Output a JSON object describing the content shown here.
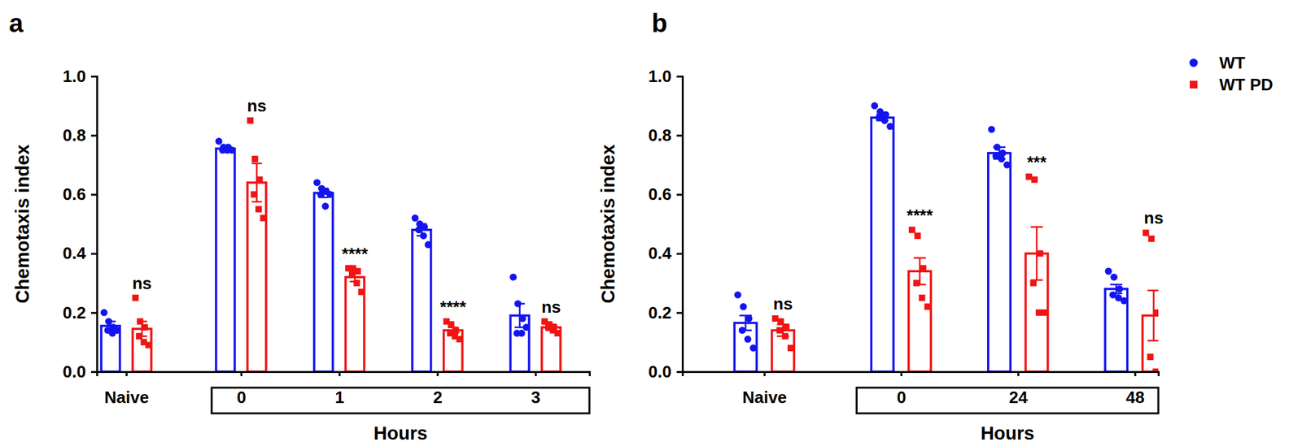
{
  "chart_data": [
    {
      "type": "bar",
      "title": "a",
      "x_label": "Hours",
      "y_label": "Chemotaxis index",
      "categories": [
        "Naive",
        "0",
        "1",
        "2",
        "3"
      ],
      "ylim": [
        0,
        1
      ],
      "yticks": [
        {
          "value": 0,
          "label": "0.0"
        },
        0.2,
        0.4,
        0.6,
        0.8,
        {
          "value": 1,
          "label": "1.0"
        }
      ],
      "annotations": [
        "ns",
        "ns",
        "****",
        "****",
        "ns"
      ],
      "series": [
        {
          "name": "WT",
          "color": "#1414f0",
          "marker": "circle",
          "values": [
            0.155,
            0.755,
            0.605,
            0.48,
            0.19
          ],
          "errors": [
            0.015,
            0.005,
            0.015,
            0.02,
            0.04
          ],
          "points": [
            [
              0.2,
              0.17,
              0.15,
              0.14,
              0.13,
              0.14
            ],
            [
              0.78,
              0.76,
              0.76,
              0.75,
              0.75,
              0.75
            ],
            [
              0.64,
              0.62,
              0.61,
              0.6,
              0.56,
              0.6
            ],
            [
              0.52,
              0.5,
              0.49,
              0.48,
              0.46,
              0.43
            ],
            [
              0.32,
              0.23,
              0.18,
              0.13,
              0.13,
              0.15
            ]
          ]
        },
        {
          "name": "WT PD",
          "color": "#f01414",
          "marker": "square",
          "values": [
            0.145,
            0.64,
            0.32,
            0.14,
            0.15
          ],
          "errors": [
            0.025,
            0.065,
            0.015,
            0.01,
            0.01
          ],
          "points": [
            [
              0.25,
              0.17,
              0.15,
              0.12,
              0.1,
              0.09
            ],
            [
              0.85,
              0.72,
              0.65,
              0.6,
              0.55,
              0.52
            ],
            [
              0.35,
              0.35,
              0.34,
              0.33,
              0.3,
              0.27
            ],
            [
              0.17,
              0.16,
              0.14,
              0.13,
              0.12,
              0.11
            ],
            [
              0.17,
              0.16,
              0.15,
              0.15,
              0.14,
              0.13
            ]
          ]
        }
      ]
    },
    {
      "type": "bar",
      "title": "b",
      "x_label": "Hours",
      "y_label": "Chemotaxis index",
      "categories": [
        "Naive",
        "0",
        "24",
        "48"
      ],
      "ylim": [
        0,
        1
      ],
      "yticks": [
        {
          "value": 0,
          "label": "0.0"
        },
        0.2,
        0.4,
        0.6,
        0.8,
        {
          "value": 1,
          "label": "1.0"
        }
      ],
      "annotations": [
        "ns",
        "****",
        "***",
        "ns"
      ],
      "legend": "right",
      "series": [
        {
          "name": "WT",
          "color": "#1414f0",
          "marker": "circle",
          "values": [
            0.165,
            0.86,
            0.74,
            0.28
          ],
          "errors": [
            0.025,
            0.01,
            0.02,
            0.015
          ],
          "points": [
            [
              0.26,
              0.22,
              0.18,
              0.14,
              0.11,
              0.08
            ],
            [
              0.9,
              0.88,
              0.87,
              0.86,
              0.85,
              0.83
            ],
            [
              0.82,
              0.76,
              0.74,
              0.73,
              0.72,
              0.7
            ],
            [
              0.34,
              0.32,
              0.28,
              0.26,
              0.25,
              0.24
            ]
          ]
        },
        {
          "name": "WT PD",
          "color": "#f01414",
          "marker": "square",
          "values": [
            0.14,
            0.34,
            0.4,
            0.19
          ],
          "errors": [
            0.02,
            0.045,
            0.09,
            0.085
          ],
          "points": [
            [
              0.18,
              0.17,
              0.15,
              0.14,
              0.12,
              0.08
            ],
            [
              0.48,
              0.46,
              0.35,
              0.3,
              0.25,
              0.22
            ],
            [
              0.66,
              0.65,
              0.4,
              0.3,
              0.2,
              0.2
            ],
            [
              0.47,
              0.45,
              0.2,
              0.05,
              0.0,
              0.0
            ]
          ]
        }
      ]
    }
  ]
}
